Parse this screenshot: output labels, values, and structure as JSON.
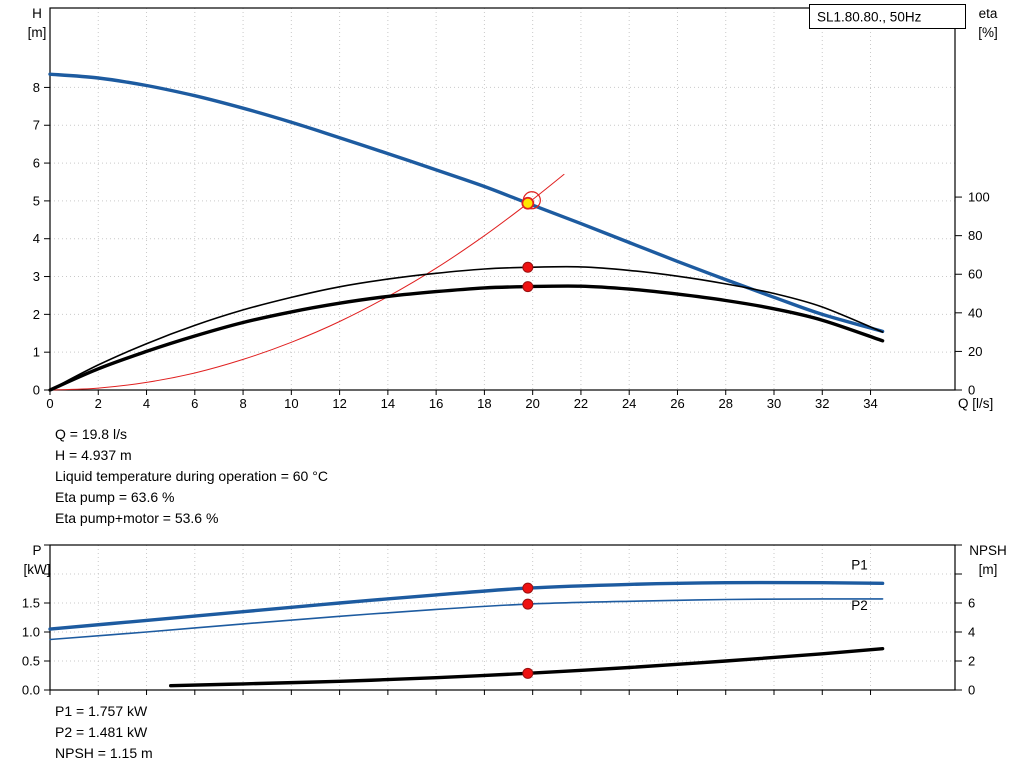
{
  "pump_designation": "SL1.80.80., 50Hz",
  "colors": {
    "curve_blue": "#1d5ba0",
    "curve_red": "#e02020",
    "curve_black": "#000000",
    "dot_red": "#ee1111",
    "dot_red_edge": "#991111",
    "duty_fill": "#ffe600",
    "grid": "#c9c9c9",
    "frame": "#000000"
  },
  "top_info_lines": [
    "Q = 19.8 l/s",
    "H = 4.937 m",
    "Liquid temperature during operation = 60 °C",
    "Eta pump = 63.6 %",
    "Eta pump+motor = 53.6 %"
  ],
  "bottom_info_lines": [
    "P1 = 1.757 kW",
    "P2 = 1.481 kW",
    "NPSH = 1.15 m"
  ],
  "chart_data": [
    {
      "type": "line",
      "name": "hq-eta-chart",
      "title_box": "SL1.80.80., 50Hz",
      "x_axis": {
        "label": "Q [l/s]",
        "min": 0,
        "max": 37.5,
        "ticks": [
          0,
          2,
          4,
          6,
          8,
          10,
          12,
          14,
          16,
          18,
          20,
          22,
          24,
          26,
          28,
          30,
          32,
          34
        ],
        "show_labels": true
      },
      "y_left": {
        "label_top": "H",
        "label_unit": "[m]",
        "min": 0,
        "max": 10.1,
        "ticks": [
          0,
          1,
          2,
          3,
          4,
          5,
          6,
          7,
          8
        ],
        "tick_labels": [
          "0",
          "1",
          "2",
          "3",
          "4",
          "5",
          "6",
          "7",
          "8"
        ]
      },
      "y_right": {
        "label_top": "eta",
        "label_unit": "[%]",
        "min": 0,
        "max": 198,
        "ticks": [
          0,
          20,
          40,
          60,
          80,
          100
        ],
        "tick_labels": [
          "0",
          "20",
          "40",
          "60",
          "80",
          "100"
        ]
      },
      "grid": true,
      "series": [
        {
          "name": "pump-hq-curve",
          "axis": "left",
          "color": "#1d5ba0",
          "width": 3.4,
          "points": [
            [
              0,
              8.35
            ],
            [
              2,
              8.25
            ],
            [
              4,
              8.05
            ],
            [
              6,
              7.78
            ],
            [
              8,
              7.45
            ],
            [
              10,
              7.08
            ],
            [
              12,
              6.67
            ],
            [
              14,
              6.25
            ],
            [
              16,
              5.82
            ],
            [
              18,
              5.38
            ],
            [
              19.8,
              4.937
            ],
            [
              22,
              4.4
            ],
            [
              24,
              3.9
            ],
            [
              26,
              3.4
            ],
            [
              28,
              2.92
            ],
            [
              30,
              2.45
            ],
            [
              32,
              2.0
            ],
            [
              34.5,
              1.55
            ]
          ]
        },
        {
          "name": "system-curve",
          "axis": "left",
          "color": "#e02020",
          "width": 1,
          "points": [
            [
              0,
              0
            ],
            [
              2,
              0.05
            ],
            [
              4,
              0.2
            ],
            [
              6,
              0.45
            ],
            [
              8,
              0.81
            ],
            [
              10,
              1.26
            ],
            [
              12,
              1.81
            ],
            [
              14,
              2.47
            ],
            [
              16,
              3.22
            ],
            [
              18,
              4.08
            ],
            [
              19.8,
              4.937
            ],
            [
              21.3,
              5.7
            ]
          ]
        },
        {
          "name": "eta-pump-curve",
          "axis": "right",
          "color": "#000000",
          "width": 1.6,
          "points": [
            [
              0,
              0
            ],
            [
              2,
              13
            ],
            [
              4,
              24
            ],
            [
              6,
              33.5
            ],
            [
              8,
              41.5
            ],
            [
              10,
              48
            ],
            [
              12,
              53.5
            ],
            [
              14,
              57.5
            ],
            [
              16,
              60.5
            ],
            [
              18,
              62.7
            ],
            [
              19.8,
              63.6
            ],
            [
              22,
              63.8
            ],
            [
              24,
              62
            ],
            [
              26,
              59
            ],
            [
              28,
              55
            ],
            [
              30,
              50
            ],
            [
              32,
              43
            ],
            [
              34.5,
              30
            ]
          ]
        },
        {
          "name": "eta-pump-motor-curve",
          "axis": "right",
          "color": "#000000",
          "width": 3.4,
          "points": [
            [
              0,
              0
            ],
            [
              2,
              11
            ],
            [
              4,
              20
            ],
            [
              6,
              28
            ],
            [
              8,
              35
            ],
            [
              10,
              40.5
            ],
            [
              12,
              45
            ],
            [
              14,
              48.5
            ],
            [
              16,
              51
            ],
            [
              18,
              52.9
            ],
            [
              19.8,
              53.6
            ],
            [
              22,
              53.8
            ],
            [
              24,
              52.3
            ],
            [
              26,
              49.7
            ],
            [
              28,
              46.4
            ],
            [
              30,
              42.1
            ],
            [
              32,
              36.2
            ],
            [
              34.5,
              25.5
            ]
          ]
        }
      ],
      "duty_point": {
        "q": 19.8,
        "h": 4.937
      },
      "dots": [
        {
          "axis": "right",
          "q": 19.8,
          "v": 63.6
        },
        {
          "axis": "right",
          "q": 19.8,
          "v": 53.6
        }
      ]
    },
    {
      "type": "line",
      "name": "power-npsh-chart",
      "x_axis": {
        "label": "",
        "min": 0,
        "max": 37.5,
        "ticks": [
          0,
          2,
          4,
          6,
          8,
          10,
          12,
          14,
          16,
          18,
          20,
          22,
          24,
          26,
          28,
          30,
          32,
          34
        ],
        "show_labels": false
      },
      "y_left": {
        "label_top": "P",
        "label_unit": "[kW]",
        "min": 0,
        "max": 2.5,
        "ticks": [
          0,
          0.5,
          1,
          1.5,
          2,
          2.5
        ],
        "tick_labels": [
          "0.0",
          "0.5",
          "1.0",
          "1.5",
          "",
          ""
        ]
      },
      "y_right": {
        "label_top": "NPSH",
        "label_unit": "[m]",
        "min": 0,
        "max": 10,
        "ticks": [
          0,
          2,
          4,
          6,
          8,
          10
        ],
        "tick_labels": [
          "0",
          "2",
          "4",
          "6",
          "",
          ""
        ]
      },
      "grid": true,
      "series": [
        {
          "name": "p1-curve",
          "axis": "left",
          "color": "#1d5ba0",
          "width": 3.4,
          "points": [
            [
              0,
              1.05
            ],
            [
              4,
              1.2
            ],
            [
              8,
              1.35
            ],
            [
              12,
              1.5
            ],
            [
              16,
              1.64
            ],
            [
              19.8,
              1.757
            ],
            [
              24,
              1.82
            ],
            [
              28,
              1.85
            ],
            [
              32,
              1.85
            ],
            [
              34.5,
              1.84
            ]
          ]
        },
        {
          "name": "p2-curve",
          "axis": "left",
          "color": "#1d5ba0",
          "width": 1.6,
          "points": [
            [
              0,
              0.87
            ],
            [
              4,
              1.0
            ],
            [
              8,
              1.14
            ],
            [
              12,
              1.27
            ],
            [
              16,
              1.39
            ],
            [
              19.8,
              1.481
            ],
            [
              24,
              1.53
            ],
            [
              28,
              1.56
            ],
            [
              32,
              1.57
            ],
            [
              34.5,
              1.57
            ]
          ]
        },
        {
          "name": "npsh-curve",
          "axis": "right",
          "color": "#000000",
          "width": 3.4,
          "points": [
            [
              5,
              0.3
            ],
            [
              8,
              0.42
            ],
            [
              12,
              0.6
            ],
            [
              16,
              0.85
            ],
            [
              19.8,
              1.15
            ],
            [
              24,
              1.55
            ],
            [
              28,
              2.0
            ],
            [
              32,
              2.5
            ],
            [
              34.5,
              2.85
            ]
          ]
        }
      ],
      "dots": [
        {
          "axis": "left",
          "q": 19.8,
          "v": 1.757
        },
        {
          "axis": "left",
          "q": 19.8,
          "v": 1.481
        },
        {
          "axis": "right",
          "q": 19.8,
          "v": 1.15
        }
      ],
      "labels": [
        {
          "text": "P1",
          "axis": "left",
          "q": 33.2,
          "v": 2.08
        },
        {
          "text": "P2",
          "axis": "left",
          "q": 33.2,
          "v": 1.38
        }
      ]
    }
  ]
}
